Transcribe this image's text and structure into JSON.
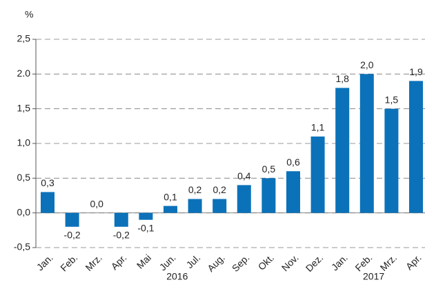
{
  "chart_data": {
    "type": "bar",
    "unit_label": "%",
    "categories": [
      "Jan.",
      "Feb.",
      "Mrz.",
      "Apr.",
      "Mai",
      "Jun.",
      "Jul.",
      "Aug.",
      "Sep.",
      "Okt.",
      "Nov.",
      "Dez.",
      "Jan.",
      "Feb.",
      "Mrz.",
      "Apr."
    ],
    "values": [
      0.3,
      -0.2,
      0.0,
      -0.2,
      -0.1,
      0.1,
      0.2,
      0.2,
      0.4,
      0.5,
      0.6,
      1.1,
      1.8,
      2.0,
      1.5,
      1.9
    ],
    "value_labels": [
      "0,3",
      "-0,2",
      "0,0",
      "-0,2",
      "-0,1",
      "0,1",
      "0,2",
      "0,2",
      "0,4",
      "0,5",
      "0,6",
      "1,1",
      "1,8",
      "2,0",
      "1,5",
      "1,9"
    ],
    "color": "#0b72b9",
    "ylim": [
      -0.5,
      2.5
    ],
    "yticks": [
      {
        "value": -0.5,
        "label": "-0,5"
      },
      {
        "value": 0,
        "label": "0,0"
      },
      {
        "value": 0.5,
        "label": "0,5"
      },
      {
        "value": 1,
        "label": "1,0"
      },
      {
        "value": 1.5,
        "label": "1,5"
      },
      {
        "value": 2,
        "label": "2.0"
      },
      {
        "value": 2.5,
        "label": "2,5"
      }
    ],
    "grid": true,
    "year_labels": [
      "2016",
      "2017"
    ]
  }
}
